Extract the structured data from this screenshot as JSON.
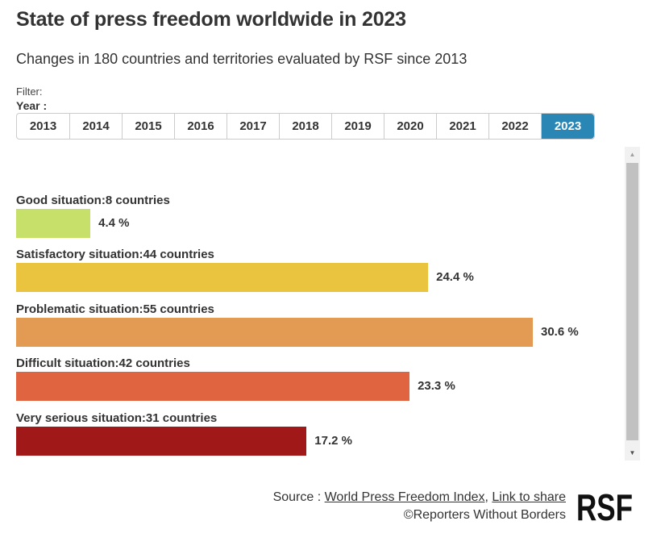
{
  "header": {
    "title": "State of press freedom worldwide in 2023",
    "subtitle": "Changes in 180 countries and territories evaluated by RSF since 2013"
  },
  "filter": {
    "label": "Filter:",
    "year_label": "Year :",
    "years": [
      "2013",
      "2014",
      "2015",
      "2016",
      "2017",
      "2018",
      "2019",
      "2020",
      "2021",
      "2022",
      "2023"
    ],
    "selected": "2023",
    "active_color": "#2a86b4"
  },
  "chart_data": {
    "type": "bar",
    "orientation": "horizontal",
    "title": "State of press freedom worldwide in 2023",
    "categories": [
      "Good situation",
      "Satisfactory situation",
      "Problematic situation",
      "Difficult situation",
      "Very serious situation"
    ],
    "labels": [
      "Good situation:8 countries",
      "Satisfactory situation:44 countries",
      "Problematic situation:55 countries",
      "Difficult situation:42 countries",
      "Very serious situation:31 countries"
    ],
    "countries": [
      8,
      44,
      55,
      42,
      31
    ],
    "values": [
      4.4,
      24.4,
      30.6,
      23.3,
      17.2
    ],
    "value_labels": [
      "4.4 %",
      "24.4 %",
      "30.6 %",
      "23.3 %",
      "17.2 %"
    ],
    "colors": [
      "#c6e06a",
      "#ebc43f",
      "#e39a53",
      "#e06440",
      "#a01818"
    ],
    "unit": "%",
    "grid": false
  },
  "footer": {
    "source_prefix": "Source : ",
    "source_link": "World Press Freedom Index",
    "separator": ", ",
    "share_link": "Link to share",
    "copyright": "©Reporters Without Borders",
    "logo_text": "RSF"
  }
}
